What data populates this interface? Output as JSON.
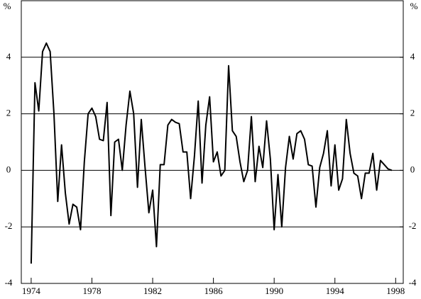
{
  "chart_data": {
    "type": "line",
    "y_label": "%",
    "y2_label": "%",
    "x": [
      1974,
      1974.25,
      1974.5,
      1974.75,
      1975,
      1975.25,
      1975.5,
      1975.75,
      1976,
      1976.25,
      1976.5,
      1976.75,
      1977,
      1977.25,
      1977.5,
      1977.75,
      1978,
      1978.25,
      1978.5,
      1978.75,
      1979,
      1979.25,
      1979.5,
      1979.75,
      1980,
      1980.25,
      1980.5,
      1980.75,
      1981,
      1981.25,
      1981.5,
      1981.75,
      1982,
      1982.25,
      1982.5,
      1982.75,
      1983,
      1983.25,
      1983.5,
      1983.75,
      1984,
      1984.25,
      1984.5,
      1984.75,
      1985,
      1985.25,
      1985.5,
      1985.75,
      1986,
      1986.25,
      1986.5,
      1986.75,
      1987,
      1987.25,
      1987.5,
      1987.75,
      1988,
      1988.25,
      1988.5,
      1988.75,
      1989,
      1989.25,
      1989.5,
      1989.75,
      1990,
      1990.25,
      1990.5,
      1990.75,
      1991,
      1991.25,
      1991.5,
      1991.75,
      1992,
      1992.25,
      1992.5,
      1992.75,
      1993,
      1993.25,
      1993.5,
      1993.75,
      1994,
      1994.25,
      1994.5,
      1994.75,
      1995,
      1995.25,
      1995.5,
      1995.75,
      1996,
      1996.25,
      1996.5,
      1996.75,
      1997,
      1997.25,
      1997.5,
      1997.75
    ],
    "values": [
      -3.3,
      3.1,
      2.1,
      4.2,
      4.5,
      4.2,
      2.0,
      -1.1,
      0.9,
      -0.8,
      -1.9,
      -1.2,
      -1.3,
      -2.1,
      0.3,
      2.0,
      2.2,
      1.9,
      1.1,
      1.05,
      2.4,
      -1.6,
      1.0,
      1.1,
      0.0,
      1.6,
      2.8,
      2.0,
      -0.6,
      1.8,
      0.1,
      -1.5,
      -0.7,
      -2.7,
      0.2,
      0.2,
      1.6,
      1.8,
      1.7,
      1.65,
      0.65,
      0.65,
      -1.0,
      0.5,
      2.45,
      -0.45,
      1.6,
      2.6,
      0.3,
      0.65,
      -0.2,
      0.0,
      3.7,
      1.4,
      1.2,
      0.3,
      -0.4,
      0.0,
      1.9,
      -0.4,
      0.85,
      0.1,
      1.75,
      0.4,
      -2.1,
      -0.15,
      -2.0,
      0.1,
      1.2,
      0.4,
      1.3,
      1.4,
      1.1,
      0.2,
      0.15,
      -1.3,
      0.1,
      0.6,
      1.4,
      -0.55,
      0.9,
      -0.7,
      -0.3,
      1.8,
      0.6,
      -0.1,
      -0.2,
      -1.0,
      -0.1,
      -0.1,
      0.6,
      -0.7,
      0.35,
      0.2,
      0.05,
      0.0
    ],
    "color": "#000000",
    "xlim": [
      1973.35,
      1998.5
    ],
    "xticks": [
      1974,
      1978,
      1982,
      1986,
      1990,
      1994,
      1998
    ],
    "ylim": [
      -4,
      6
    ],
    "yticks": [
      -4,
      -2,
      0,
      2,
      4
    ],
    "y2lim": [
      -4,
      6
    ],
    "y2ticks": [
      -4,
      -2,
      0,
      2,
      4
    ],
    "grid": true
  }
}
